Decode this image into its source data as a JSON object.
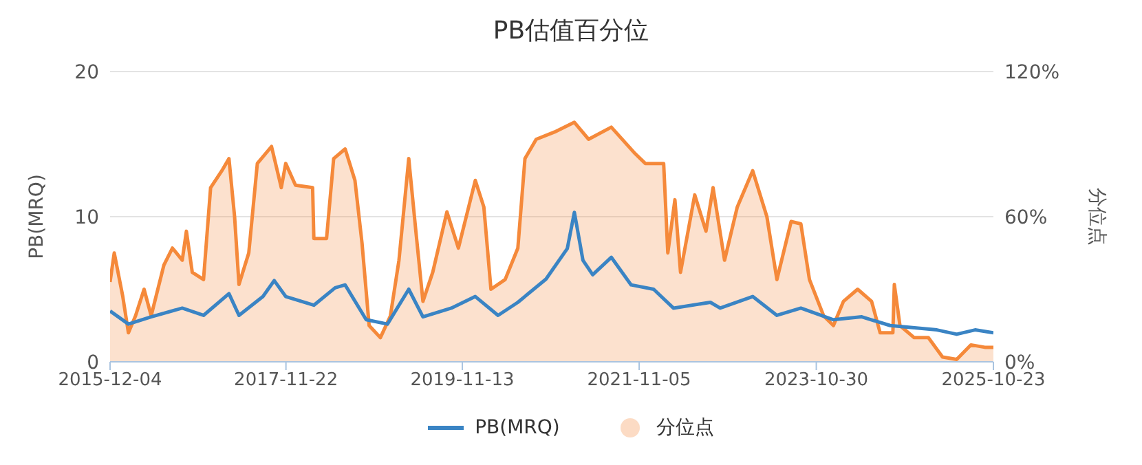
{
  "chart_data": {
    "type": "line",
    "title": "PB估值百分位",
    "ylabel": "PB(MRQ)",
    "y2label": "分位点",
    "xlim": [
      "2015-12-04",
      "2025-10-23"
    ],
    "xticks": [
      "2015-12-04",
      "2017-11-22",
      "2019-11-13",
      "2021-11-05",
      "2023-10-30",
      "2025-10-23"
    ],
    "ylim": [
      0,
      20
    ],
    "yticks": [
      0,
      10,
      20
    ],
    "y2lim": [
      0,
      120
    ],
    "y2ticks": [
      {
        "value": 0,
        "label": "0%"
      },
      {
        "value": 60,
        "label": "60%"
      },
      {
        "value": 120,
        "label": "120%"
      }
    ],
    "grid": "y",
    "legend": "bottom",
    "series": [
      {
        "name": "PB(MRQ)",
        "color": "#3a84c4",
        "x": [
          "2015-12-04",
          "2016-02-17",
          "2016-05-20",
          "2016-09-24",
          "2016-12-20",
          "2017-04-03",
          "2017-05-14",
          "2017-08-20",
          "2017-10-05",
          "2017-11-21",
          "2018-03-16",
          "2018-06-11",
          "2018-07-22",
          "2018-10-16",
          "2019-01-11",
          "2019-04-08",
          "2019-06-05",
          "2019-09-29",
          "2020-01-05",
          "2020-04-07",
          "2020-06-27",
          "2020-10-20",
          "2021-01-15",
          "2021-02-13",
          "2021-03-20",
          "2021-04-29",
          "2021-07-14",
          "2021-10-03",
          "2022-01-03",
          "2022-03-25",
          "2022-08-23",
          "2022-10-02",
          "2023-02-12",
          "2023-05-22",
          "2023-08-28",
          "2024-01-08",
          "2024-05-03",
          "2024-08-27",
          "2025-03-06",
          "2025-05-26",
          "2025-08-09",
          "2025-10-23"
        ],
        "values": [
          3.5,
          2.6,
          3.1,
          3.7,
          3.2,
          4.7,
          3.2,
          4.5,
          5.6,
          4.5,
          3.9,
          5.1,
          5.3,
          2.9,
          2.6,
          5.0,
          3.1,
          3.7,
          4.5,
          3.2,
          4.1,
          5.7,
          7.8,
          10.3,
          7.0,
          6.0,
          7.2,
          5.3,
          5.0,
          3.7,
          4.1,
          3.7,
          4.5,
          3.2,
          3.7,
          2.9,
          3.1,
          2.5,
          2.2,
          1.9,
          2.2,
          2.0
        ]
      },
      {
        "name": "分位点",
        "type": "area",
        "axis": "y2",
        "color": "#f5893a",
        "x": [
          "2015-12-04",
          "2015-12-21",
          "2016-01-25",
          "2016-02-17",
          "2016-03-17",
          "2016-04-21",
          "2016-05-20",
          "2016-07-11",
          "2016-08-15",
          "2016-09-24",
          "2016-10-11",
          "2016-11-04",
          "2016-12-20",
          "2017-01-18",
          "2017-03-05",
          "2017-04-03",
          "2017-04-26",
          "2017-05-14",
          "2017-06-23",
          "2017-07-28",
          "2017-09-24",
          "2017-11-03",
          "2017-11-21",
          "2017-12-31",
          "2018-03-11",
          "2018-03-16",
          "2018-05-07",
          "2018-06-05",
          "2018-07-22",
          "2018-08-31",
          "2018-09-29",
          "2018-10-28",
          "2018-12-13",
          "2019-01-23",
          "2019-02-27",
          "2019-04-08",
          "2019-05-07",
          "2019-06-05",
          "2019-07-15",
          "2019-09-11",
          "2019-10-28",
          "2020-01-05",
          "2020-02-09",
          "2020-03-09",
          "2020-05-06",
          "2020-06-27",
          "2020-07-26",
          "2020-09-10",
          "2020-11-24",
          "2021-02-13",
          "2021-04-12",
          "2021-07-14",
          "2021-10-20",
          "2021-11-30",
          "2022-02-13",
          "2022-03-02",
          "2022-03-31",
          "2022-04-23",
          "2022-06-20",
          "2022-08-05",
          "2022-09-03",
          "2022-10-20",
          "2022-12-11",
          "2023-02-12",
          "2023-04-11",
          "2023-05-22",
          "2023-07-19",
          "2023-08-28",
          "2023-10-02",
          "2023-11-29",
          "2024-01-08",
          "2024-02-18",
          "2024-04-16",
          "2024-06-12",
          "2024-07-17",
          "2024-09-07",
          "2024-09-13",
          "2024-10-06",
          "2024-12-03",
          "2025-01-30",
          "2025-03-29",
          "2025-05-26",
          "2025-07-23",
          "2025-09-18",
          "2025-10-23"
        ],
        "values": [
          33,
          45,
          27,
          12,
          19,
          30,
          19,
          40,
          47,
          42,
          54,
          37,
          34,
          72,
          79,
          84,
          60,
          32,
          45,
          82,
          89,
          72,
          82,
          73,
          72,
          51,
          51,
          84,
          88,
          75,
          49,
          15,
          10,
          19,
          42,
          84,
          54,
          25,
          37,
          62,
          47,
          75,
          64,
          30,
          34,
          47,
          84,
          92,
          95,
          99,
          92,
          97,
          86,
          82,
          82,
          45,
          67,
          37,
          69,
          54,
          72,
          42,
          64,
          79,
          60,
          34,
          58,
          57,
          34,
          19,
          15,
          25,
          30,
          25,
          12,
          12,
          32,
          15,
          10,
          10,
          2,
          1,
          7,
          6,
          6
        ]
      }
    ]
  }
}
